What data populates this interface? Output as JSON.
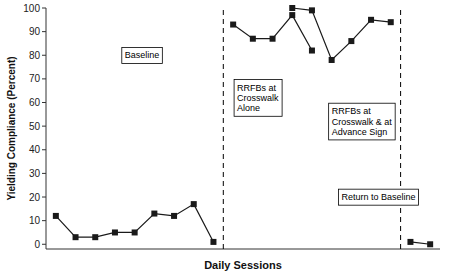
{
  "chart_data": {
    "type": "line",
    "xlabel": "Daily Sessions",
    "ylabel": "Yielding Compliance (Percent)",
    "xlim": [
      0.5,
      20.5
    ],
    "ylim": [
      -2,
      100
    ],
    "yticks": [
      0,
      10,
      20,
      30,
      40,
      50,
      60,
      70,
      80,
      90,
      100
    ],
    "tick_labels": "y",
    "grid": false,
    "series": [
      {
        "color": "#1a1a1a",
        "marker": "square",
        "x": [
          1,
          2,
          3,
          4,
          5,
          6,
          7,
          8,
          9
        ],
        "values": [
          12,
          3,
          3,
          5,
          5,
          13,
          12,
          17,
          1
        ]
      },
      {
        "color": "#1a1a1a",
        "marker": "square",
        "x": [
          10,
          11,
          12,
          13,
          14
        ],
        "values": [
          93,
          87,
          87,
          97,
          82
        ]
      },
      {
        "color": "#1a1a1a",
        "marker": "square",
        "x": [
          13,
          14,
          15,
          16,
          17,
          18
        ],
        "values": [
          100,
          99,
          78,
          86,
          95,
          94
        ]
      },
      {
        "color": "#1a1a1a",
        "marker": "square",
        "x": [
          19,
          20
        ],
        "values": [
          1,
          0
        ]
      }
    ],
    "vlines": [
      9.5,
      18.5
    ],
    "annotations": [
      {
        "text": "Baseline",
        "x": 4.5,
        "y": 80
      },
      {
        "text": "RRFBs at\nCrosswalk\nAlone",
        "x": 10.2,
        "y": 62
      },
      {
        "text": "RRFBs at\nCrosswalk & at\nAdvance Sign",
        "x": 15.0,
        "y": 52
      },
      {
        "text": "Return to Baseline",
        "x": 15.5,
        "y": 20
      }
    ]
  }
}
